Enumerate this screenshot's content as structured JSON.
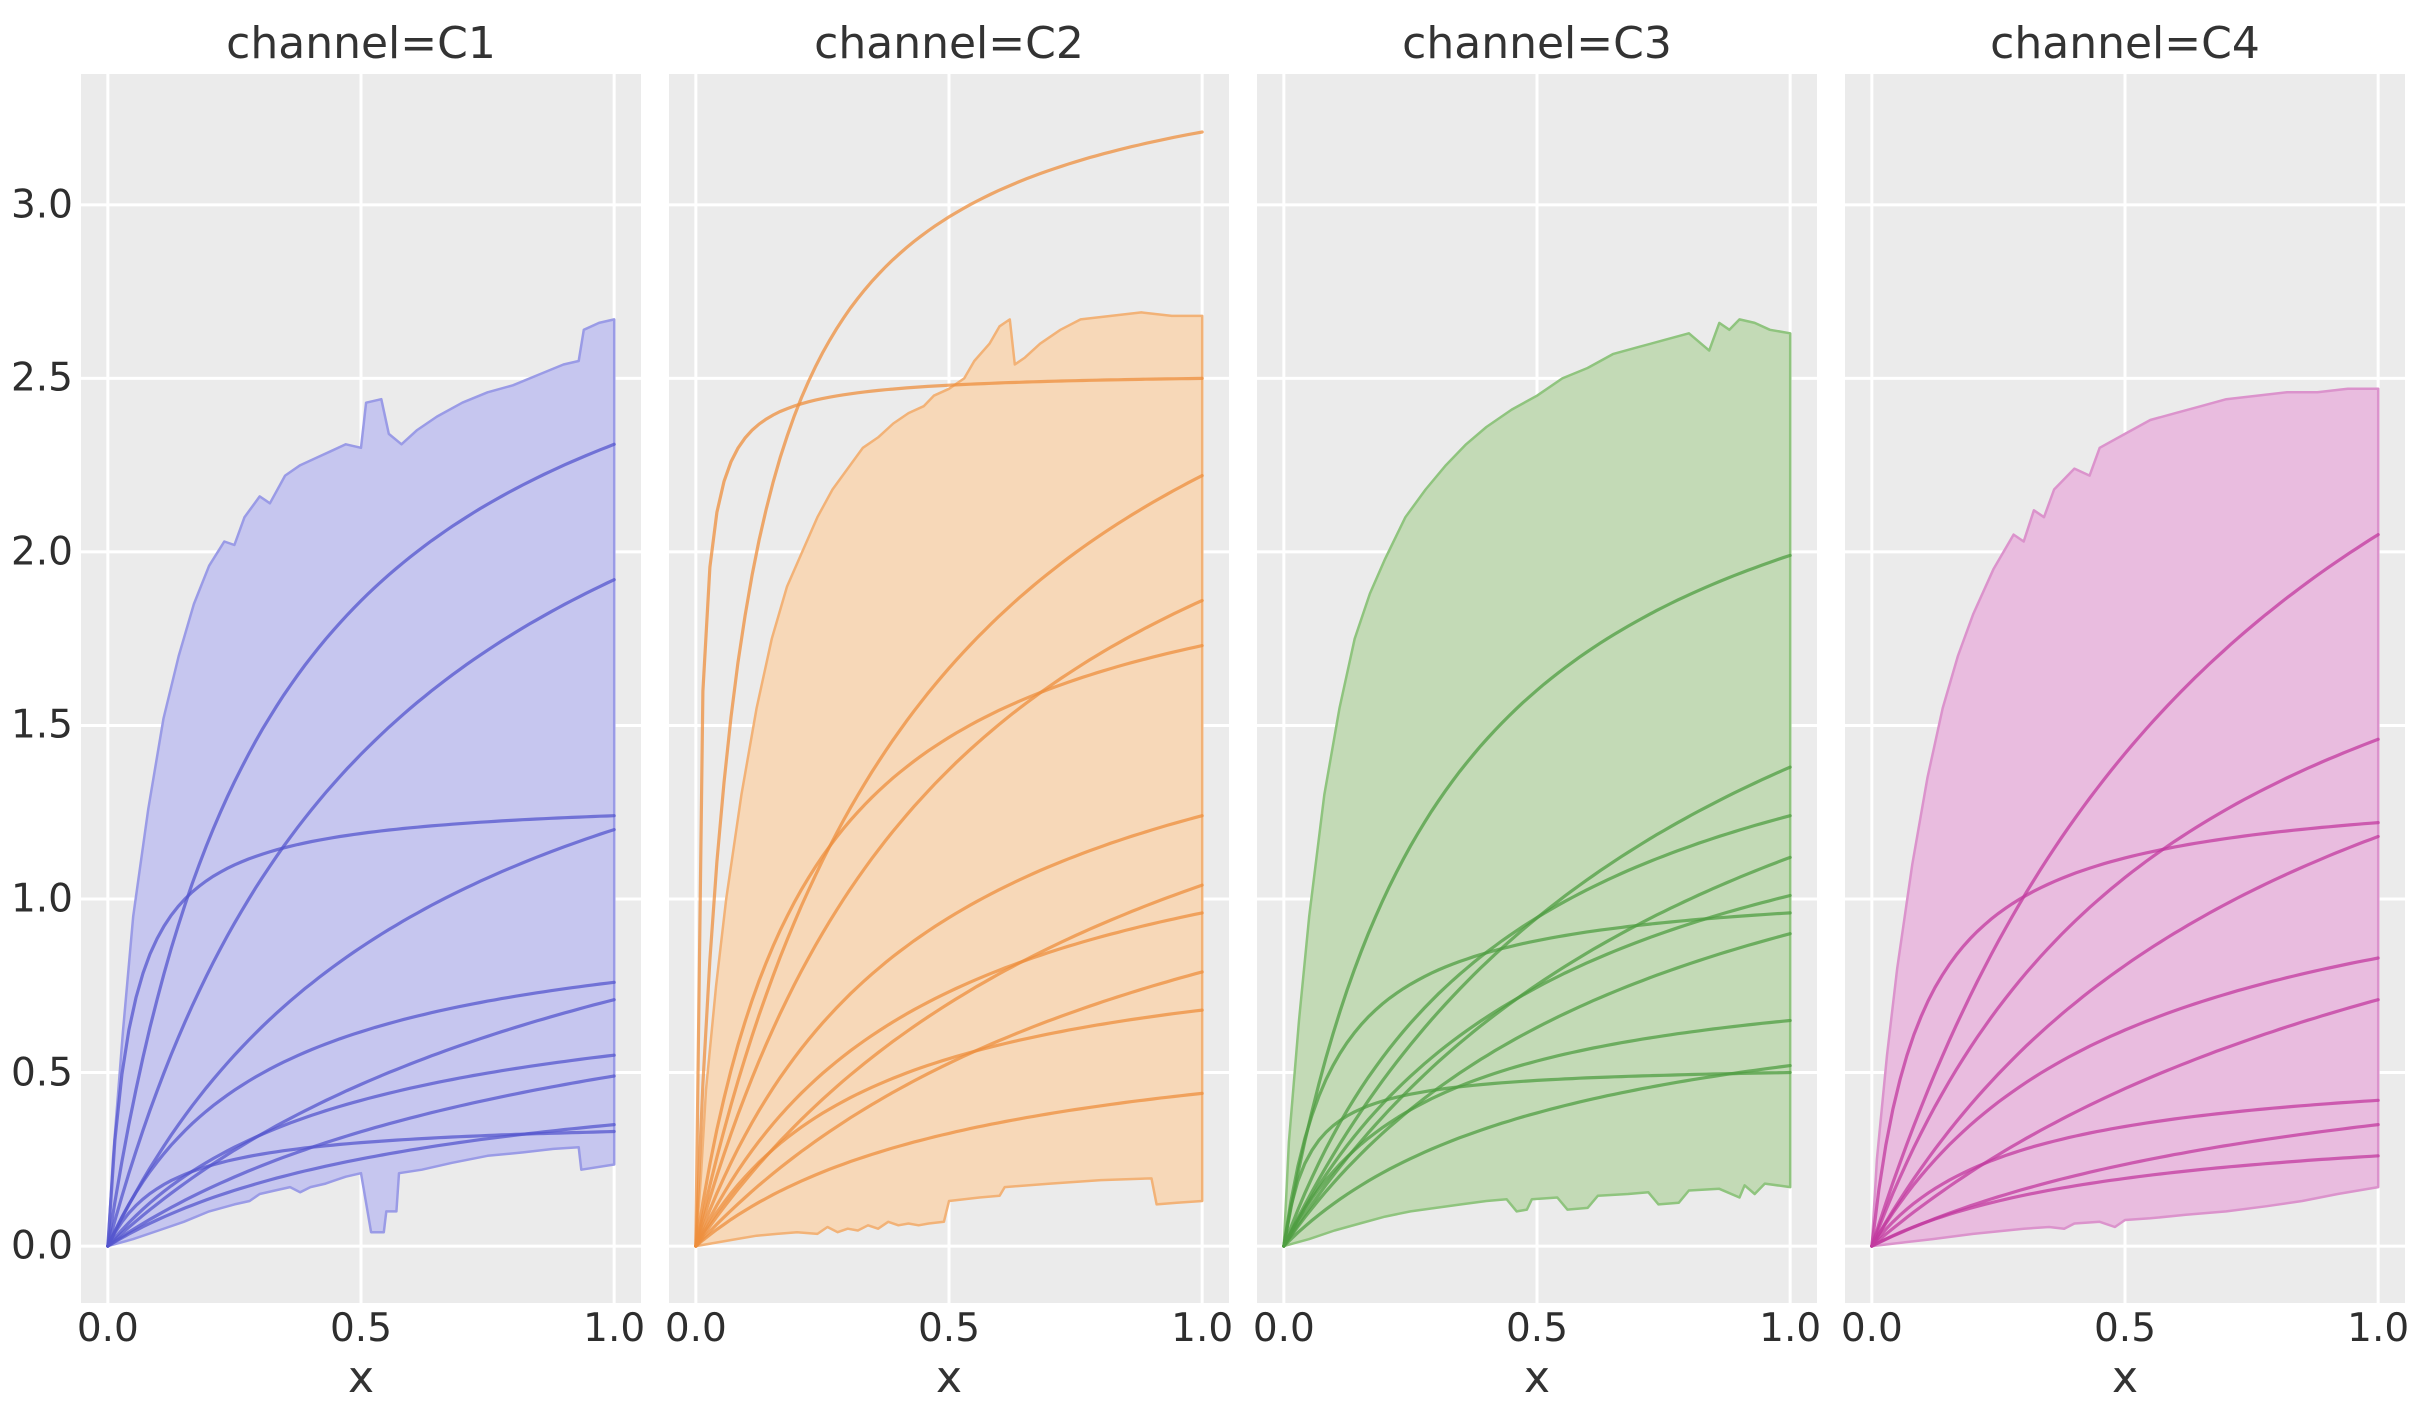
{
  "page": {
    "background": "#ffffff"
  },
  "chart_data": {
    "type": "line",
    "subtype": "faceted-fan-curves-with-uncertainty-band",
    "grid": "on",
    "legend": "none",
    "x_axis": {
      "label": "x",
      "ticks": [
        0,
        0.5,
        1
      ],
      "tick_labels": [
        "0.0",
        "0.5",
        "1.0"
      ],
      "lim": [
        -0.053,
        1.053
      ]
    },
    "y_axis": {
      "ticks": [
        0,
        0.5,
        1,
        1.5,
        2,
        2.5,
        3
      ],
      "tick_labels": [
        "0.0",
        "0.5",
        "1.0",
        "1.5",
        "2.0",
        "2.5",
        "3.0"
      ],
      "lim": [
        -0.164,
        3.377
      ]
    },
    "style": {
      "panel_background": "#ebebeb",
      "grid_color": "#ffffff",
      "text_color": "#333333",
      "line_opacity": 0.75
    },
    "facets": [
      {
        "id": "C1",
        "title": "channel=C1",
        "line_color": "#5456ce",
        "band_fill": "#c6c6ef",
        "band_edge": "#9a9be6",
        "curves": [
          {
            "end": 2.31,
            "k": 0.32
          },
          {
            "end": 1.92,
            "k": 0.55
          },
          {
            "end": 1.24,
            "k": 0.045
          },
          {
            "end": 1.2,
            "k": 0.65
          },
          {
            "end": 0.76,
            "k": 0.3
          },
          {
            "end": 0.71,
            "k": 1.1
          },
          {
            "end": 0.55,
            "k": 0.45
          },
          {
            "end": 0.49,
            "k": 0.95
          },
          {
            "end": 0.35,
            "k": 0.65
          },
          {
            "end": 0.33,
            "k": 0.12
          }
        ],
        "band_upper": [
          [
            0,
            0
          ],
          [
            0.01,
            0.25
          ],
          [
            0.03,
            0.62
          ],
          [
            0.05,
            0.95
          ],
          [
            0.08,
            1.26
          ],
          [
            0.11,
            1.52
          ],
          [
            0.14,
            1.7
          ],
          [
            0.17,
            1.85
          ],
          [
            0.2,
            1.96
          ],
          [
            0.23,
            2.03
          ],
          [
            0.25,
            2.02
          ],
          [
            0.27,
            2.1
          ],
          [
            0.3,
            2.16
          ],
          [
            0.32,
            2.14
          ],
          [
            0.35,
            2.22
          ],
          [
            0.38,
            2.25
          ],
          [
            0.41,
            2.27
          ],
          [
            0.44,
            2.29
          ],
          [
            0.47,
            2.31
          ],
          [
            0.5,
            2.3
          ],
          [
            0.51,
            2.43
          ],
          [
            0.54,
            2.44
          ],
          [
            0.555,
            2.34
          ],
          [
            0.58,
            2.31
          ],
          [
            0.61,
            2.35
          ],
          [
            0.65,
            2.39
          ],
          [
            0.7,
            2.43
          ],
          [
            0.75,
            2.46
          ],
          [
            0.8,
            2.48
          ],
          [
            0.85,
            2.51
          ],
          [
            0.9,
            2.54
          ],
          [
            0.93,
            2.55
          ],
          [
            0.94,
            2.64
          ],
          [
            0.97,
            2.66
          ],
          [
            1,
            2.67
          ]
        ],
        "band_lower": [
          [
            0,
            0
          ],
          [
            0.05,
            0.02
          ],
          [
            0.1,
            0.045
          ],
          [
            0.15,
            0.07
          ],
          [
            0.2,
            0.1
          ],
          [
            0.25,
            0.12
          ],
          [
            0.28,
            0.13
          ],
          [
            0.3,
            0.15
          ],
          [
            0.33,
            0.16
          ],
          [
            0.36,
            0.17
          ],
          [
            0.38,
            0.155
          ],
          [
            0.4,
            0.17
          ],
          [
            0.43,
            0.18
          ],
          [
            0.45,
            0.19
          ],
          [
            0.47,
            0.2
          ],
          [
            0.5,
            0.21
          ],
          [
            0.52,
            0.04
          ],
          [
            0.545,
            0.04
          ],
          [
            0.55,
            0.1
          ],
          [
            0.57,
            0.1
          ],
          [
            0.575,
            0.21
          ],
          [
            0.62,
            0.22
          ],
          [
            0.68,
            0.24
          ],
          [
            0.75,
            0.26
          ],
          [
            0.82,
            0.27
          ],
          [
            0.88,
            0.28
          ],
          [
            0.93,
            0.285
          ],
          [
            0.935,
            0.22
          ],
          [
            1,
            0.235
          ]
        ]
      },
      {
        "id": "C2",
        "title": "channel=C2",
        "line_color": "#ee8f3e",
        "band_fill": "#f7d8b8",
        "band_edge": "#f2b277",
        "curves": [
          {
            "end": 3.21,
            "k": 0.09
          },
          {
            "end": 2.5,
            "k": 0.008
          },
          {
            "end": 2.22,
            "k": 0.5
          },
          {
            "end": 1.86,
            "k": 0.55
          },
          {
            "end": 1.73,
            "k": 0.22
          },
          {
            "end": 1.24,
            "k": 0.45
          },
          {
            "end": 1.04,
            "k": 0.95
          },
          {
            "end": 0.96,
            "k": 0.45
          },
          {
            "end": 0.79,
            "k": 1.0
          },
          {
            "end": 0.68,
            "k": 0.35
          },
          {
            "end": 0.44,
            "k": 0.55
          }
        ],
        "band_upper": [
          [
            0,
            0
          ],
          [
            0.01,
            0.2
          ],
          [
            0.02,
            0.45
          ],
          [
            0.04,
            0.75
          ],
          [
            0.06,
            1.0
          ],
          [
            0.09,
            1.3
          ],
          [
            0.12,
            1.55
          ],
          [
            0.15,
            1.75
          ],
          [
            0.18,
            1.9
          ],
          [
            0.21,
            2.0
          ],
          [
            0.24,
            2.1
          ],
          [
            0.27,
            2.18
          ],
          [
            0.3,
            2.24
          ],
          [
            0.33,
            2.3
          ],
          [
            0.36,
            2.33
          ],
          [
            0.39,
            2.37
          ],
          [
            0.42,
            2.4
          ],
          [
            0.45,
            2.42
          ],
          [
            0.47,
            2.45
          ],
          [
            0.5,
            2.47
          ],
          [
            0.53,
            2.5
          ],
          [
            0.55,
            2.55
          ],
          [
            0.58,
            2.6
          ],
          [
            0.6,
            2.65
          ],
          [
            0.62,
            2.67
          ],
          [
            0.63,
            2.54
          ],
          [
            0.65,
            2.56
          ],
          [
            0.68,
            2.6
          ],
          [
            0.72,
            2.64
          ],
          [
            0.76,
            2.67
          ],
          [
            0.82,
            2.68
          ],
          [
            0.88,
            2.69
          ],
          [
            0.94,
            2.68
          ],
          [
            1,
            2.68
          ]
        ],
        "band_lower": [
          [
            0,
            0
          ],
          [
            0.04,
            0.01
          ],
          [
            0.08,
            0.02
          ],
          [
            0.12,
            0.03
          ],
          [
            0.16,
            0.035
          ],
          [
            0.2,
            0.04
          ],
          [
            0.24,
            0.035
          ],
          [
            0.26,
            0.055
          ],
          [
            0.28,
            0.04
          ],
          [
            0.3,
            0.05
          ],
          [
            0.32,
            0.045
          ],
          [
            0.34,
            0.06
          ],
          [
            0.36,
            0.05
          ],
          [
            0.38,
            0.07
          ],
          [
            0.4,
            0.06
          ],
          [
            0.42,
            0.065
          ],
          [
            0.44,
            0.06
          ],
          [
            0.46,
            0.065
          ],
          [
            0.49,
            0.07
          ],
          [
            0.5,
            0.13
          ],
          [
            0.53,
            0.135
          ],
          [
            0.56,
            0.14
          ],
          [
            0.6,
            0.145
          ],
          [
            0.61,
            0.17
          ],
          [
            0.7,
            0.18
          ],
          [
            0.8,
            0.19
          ],
          [
            0.9,
            0.195
          ],
          [
            0.91,
            0.12
          ],
          [
            0.95,
            0.125
          ],
          [
            1,
            0.13
          ]
        ]
      },
      {
        "id": "C3",
        "title": "channel=C3",
        "line_color": "#4f9d42",
        "band_fill": "#c3dab6",
        "band_edge": "#8fc47e",
        "curves": [
          {
            "end": 1.99,
            "k": 0.32
          },
          {
            "end": 1.38,
            "k": 0.85
          },
          {
            "end": 1.24,
            "k": 0.45
          },
          {
            "end": 1.12,
            "k": 0.95
          },
          {
            "end": 1.01,
            "k": 0.55
          },
          {
            "end": 0.96,
            "k": 0.1
          },
          {
            "end": 0.9,
            "k": 0.75
          },
          {
            "end": 0.65,
            "k": 0.28
          },
          {
            "end": 0.52,
            "k": 0.55
          },
          {
            "end": 0.5,
            "k": 0.05
          }
        ],
        "band_upper": [
          [
            0,
            0
          ],
          [
            0.01,
            0.3
          ],
          [
            0.03,
            0.65
          ],
          [
            0.05,
            0.95
          ],
          [
            0.08,
            1.3
          ],
          [
            0.11,
            1.55
          ],
          [
            0.14,
            1.75
          ],
          [
            0.17,
            1.88
          ],
          [
            0.2,
            1.98
          ],
          [
            0.24,
            2.1
          ],
          [
            0.28,
            2.18
          ],
          [
            0.32,
            2.25
          ],
          [
            0.36,
            2.31
          ],
          [
            0.4,
            2.36
          ],
          [
            0.45,
            2.41
          ],
          [
            0.5,
            2.45
          ],
          [
            0.55,
            2.5
          ],
          [
            0.6,
            2.53
          ],
          [
            0.65,
            2.57
          ],
          [
            0.7,
            2.59
          ],
          [
            0.75,
            2.61
          ],
          [
            0.8,
            2.63
          ],
          [
            0.84,
            2.58
          ],
          [
            0.86,
            2.66
          ],
          [
            0.88,
            2.64
          ],
          [
            0.9,
            2.67
          ],
          [
            0.93,
            2.66
          ],
          [
            0.96,
            2.64
          ],
          [
            1,
            2.63
          ]
        ],
        "band_lower": [
          [
            0,
            0
          ],
          [
            0.05,
            0.02
          ],
          [
            0.1,
            0.045
          ],
          [
            0.15,
            0.065
          ],
          [
            0.2,
            0.085
          ],
          [
            0.25,
            0.1
          ],
          [
            0.3,
            0.11
          ],
          [
            0.35,
            0.12
          ],
          [
            0.4,
            0.13
          ],
          [
            0.44,
            0.135
          ],
          [
            0.46,
            0.1
          ],
          [
            0.48,
            0.105
          ],
          [
            0.49,
            0.135
          ],
          [
            0.54,
            0.14
          ],
          [
            0.56,
            0.105
          ],
          [
            0.6,
            0.11
          ],
          [
            0.62,
            0.145
          ],
          [
            0.68,
            0.15
          ],
          [
            0.72,
            0.155
          ],
          [
            0.74,
            0.12
          ],
          [
            0.78,
            0.125
          ],
          [
            0.8,
            0.16
          ],
          [
            0.86,
            0.165
          ],
          [
            0.9,
            0.14
          ],
          [
            0.91,
            0.175
          ],
          [
            0.93,
            0.15
          ],
          [
            0.95,
            0.18
          ],
          [
            1,
            0.17
          ]
        ]
      },
      {
        "id": "C4",
        "title": "channel=C4",
        "line_color": "#c2399f",
        "band_fill": "#e9bcdf",
        "band_edge": "#db93cc",
        "curves": [
          {
            "end": 2.05,
            "k": 0.8
          },
          {
            "end": 1.46,
            "k": 0.6
          },
          {
            "end": 1.22,
            "k": 0.1
          },
          {
            "end": 1.18,
            "k": 0.85
          },
          {
            "end": 0.83,
            "k": 0.5
          },
          {
            "end": 0.71,
            "k": 1.3
          },
          {
            "end": 0.42,
            "k": 0.28
          },
          {
            "end": 0.35,
            "k": 0.95
          },
          {
            "end": 0.26,
            "k": 0.5
          }
        ],
        "band_upper": [
          [
            0,
            0
          ],
          [
            0.01,
            0.25
          ],
          [
            0.03,
            0.55
          ],
          [
            0.05,
            0.8
          ],
          [
            0.08,
            1.1
          ],
          [
            0.11,
            1.35
          ],
          [
            0.14,
            1.55
          ],
          [
            0.17,
            1.7
          ],
          [
            0.2,
            1.82
          ],
          [
            0.24,
            1.95
          ],
          [
            0.28,
            2.05
          ],
          [
            0.3,
            2.03
          ],
          [
            0.32,
            2.12
          ],
          [
            0.34,
            2.1
          ],
          [
            0.36,
            2.18
          ],
          [
            0.4,
            2.24
          ],
          [
            0.43,
            2.22
          ],
          [
            0.45,
            2.3
          ],
          [
            0.5,
            2.34
          ],
          [
            0.55,
            2.38
          ],
          [
            0.6,
            2.4
          ],
          [
            0.65,
            2.42
          ],
          [
            0.7,
            2.44
          ],
          [
            0.76,
            2.45
          ],
          [
            0.82,
            2.46
          ],
          [
            0.88,
            2.46
          ],
          [
            0.94,
            2.47
          ],
          [
            1,
            2.47
          ]
        ],
        "band_lower": [
          [
            0,
            0
          ],
          [
            0.06,
            0.01
          ],
          [
            0.12,
            0.02
          ],
          [
            0.2,
            0.035
          ],
          [
            0.3,
            0.05
          ],
          [
            0.35,
            0.055
          ],
          [
            0.38,
            0.05
          ],
          [
            0.4,
            0.065
          ],
          [
            0.45,
            0.07
          ],
          [
            0.48,
            0.055
          ],
          [
            0.5,
            0.075
          ],
          [
            0.55,
            0.08
          ],
          [
            0.62,
            0.09
          ],
          [
            0.7,
            0.1
          ],
          [
            0.78,
            0.115
          ],
          [
            0.85,
            0.13
          ],
          [
            0.92,
            0.15
          ],
          [
            1,
            0.17
          ]
        ]
      }
    ]
  }
}
